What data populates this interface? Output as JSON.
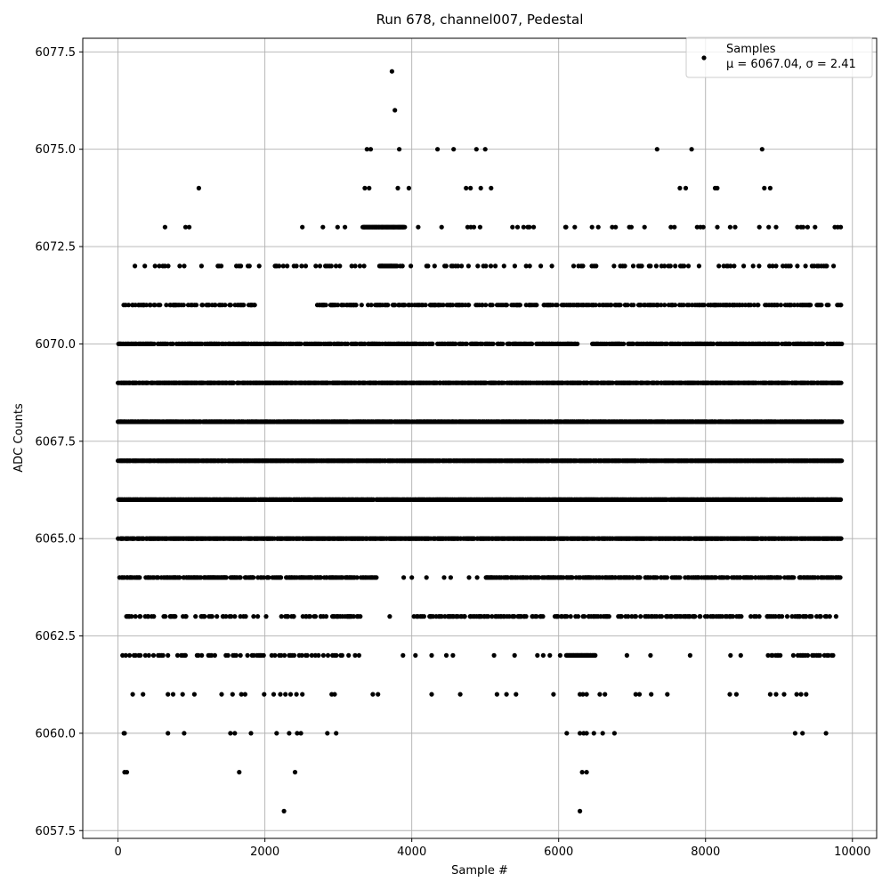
{
  "chart_data": {
    "type": "scatter",
    "title": "Run 678, channel007, Pedestal",
    "xlabel": "Sample #",
    "ylabel": "ADC Counts",
    "xlim": [
      -480,
      10330
    ],
    "ylim": [
      6057.3,
      6077.85
    ],
    "xticks": [
      0,
      2000,
      4000,
      6000,
      8000,
      10000
    ],
    "yticks": [
      6057.5,
      6060.0,
      6062.5,
      6065.0,
      6067.5,
      6070.0,
      6072.5,
      6075.0,
      6077.5
    ],
    "grid": true,
    "legend": {
      "placement": "top-right",
      "series_label": "Samples",
      "stats_text": "μ = 6067.04, σ = 2.41"
    },
    "colors": {
      "marker": "#000000",
      "grid": "#b0b0b0"
    },
    "series": [
      {
        "name": "Samples",
        "mean": 6067.04,
        "sigma": 2.41,
        "n_samples": 9850,
        "x_range": [
          0,
          9849
        ],
        "dense_levels": [
          6063,
          6064,
          6065,
          6066,
          6067,
          6068,
          6069,
          6070,
          6071
        ],
        "band_gaps": [
          {
            "level": 6063,
            "x_from": 3300,
            "x_to": 4000
          },
          {
            "level": 6064,
            "x_from": 3550,
            "x_to": 5000
          },
          {
            "level": 6071,
            "x_from": 1900,
            "x_to": 2700
          },
          {
            "level": 6070,
            "x_from": 6250,
            "x_to": 6450
          }
        ],
        "sparse_points": [
          [
            80,
            6060
          ],
          [
            90,
            6059
          ],
          [
            120,
            6059
          ],
          [
            230,
            6072
          ],
          [
            640,
            6073
          ],
          [
            920,
            6073
          ],
          [
            970,
            6073
          ],
          [
            1100,
            6074
          ],
          [
            1360,
            6072
          ],
          [
            1790,
            6072
          ],
          [
            2150,
            6072
          ],
          [
            2510,
            6073
          ],
          [
            2790,
            6073
          ],
          [
            2990,
            6073
          ],
          [
            3090,
            6073
          ],
          [
            3230,
            6072
          ],
          [
            3360,
            6074
          ],
          [
            3390,
            6075
          ],
          [
            3420,
            6074
          ],
          [
            3440,
            6075
          ],
          [
            3730,
            6077
          ],
          [
            3770,
            6076
          ],
          [
            3810,
            6074
          ],
          [
            3830,
            6075
          ],
          [
            3960,
            6074
          ],
          [
            4350,
            6075
          ],
          [
            4570,
            6075
          ],
          [
            4740,
            6074
          ],
          [
            4800,
            6074
          ],
          [
            4880,
            6075
          ],
          [
            4940,
            6074
          ],
          [
            5000,
            6075
          ],
          [
            5080,
            6074
          ],
          [
            6100,
            6073
          ],
          [
            6730,
            6073
          ],
          [
            6990,
            6073
          ],
          [
            7340,
            6075
          ],
          [
            7650,
            6074
          ],
          [
            7730,
            6074
          ],
          [
            7810,
            6075
          ],
          [
            8130,
            6074
          ],
          [
            8160,
            6074
          ],
          [
            8770,
            6075
          ],
          [
            8800,
            6074
          ],
          [
            8880,
            6074
          ],
          [
            8960,
            6073
          ],
          [
            9390,
            6073
          ],
          [
            9760,
            6073
          ],
          [
            9840,
            6073
          ],
          [
            3700,
            6063
          ],
          [
            4030,
            6063
          ],
          [
            4290,
            6063
          ],
          [
            4500,
            6063
          ],
          [
            4560,
            6063
          ],
          [
            4680,
            6063
          ],
          [
            3890,
            6064
          ],
          [
            4000,
            6064
          ],
          [
            4200,
            6064
          ],
          [
            4440,
            6064
          ],
          [
            4530,
            6064
          ],
          [
            4780,
            6064
          ],
          [
            4890,
            6064
          ],
          [
            3880,
            6062
          ],
          [
            4050,
            6062
          ],
          [
            4270,
            6062
          ],
          [
            4470,
            6062
          ],
          [
            4560,
            6062
          ],
          [
            5120,
            6062
          ],
          [
            5400,
            6062
          ],
          [
            5710,
            6062
          ],
          [
            5790,
            6062
          ],
          [
            5880,
            6062
          ],
          [
            6020,
            6062
          ],
          [
            7790,
            6062
          ],
          [
            8340,
            6062
          ],
          [
            8480,
            6062
          ],
          [
            200,
            6061
          ],
          [
            340,
            6061
          ],
          [
            680,
            6061
          ],
          [
            750,
            6061
          ],
          [
            880,
            6061
          ],
          [
            1040,
            6061
          ],
          [
            1410,
            6061
          ],
          [
            1560,
            6061
          ],
          [
            1680,
            6061
          ],
          [
            1730,
            6061
          ],
          [
            1990,
            6061
          ],
          [
            2120,
            6061
          ],
          [
            2210,
            6061
          ],
          [
            2280,
            6061
          ],
          [
            2350,
            6061
          ],
          [
            2430,
            6061
          ],
          [
            2510,
            6061
          ],
          [
            2910,
            6061
          ],
          [
            2950,
            6061
          ],
          [
            3470,
            6061
          ],
          [
            3540,
            6061
          ],
          [
            4270,
            6061
          ],
          [
            4660,
            6061
          ],
          [
            5160,
            6061
          ],
          [
            5290,
            6061
          ],
          [
            5420,
            6061
          ],
          [
            5930,
            6061
          ],
          [
            6290,
            6061
          ],
          [
            6330,
            6061
          ],
          [
            6380,
            6061
          ],
          [
            6560,
            6061
          ],
          [
            6630,
            6061
          ],
          [
            7050,
            6061
          ],
          [
            7100,
            6061
          ],
          [
            7260,
            6061
          ],
          [
            7480,
            6061
          ],
          [
            8330,
            6061
          ],
          [
            8420,
            6061
          ],
          [
            8880,
            6061
          ],
          [
            8960,
            6061
          ],
          [
            9070,
            6061
          ],
          [
            9240,
            6061
          ],
          [
            9300,
            6061
          ],
          [
            9370,
            6061
          ],
          [
            90,
            6060
          ],
          [
            680,
            6060
          ],
          [
            900,
            6060
          ],
          [
            1530,
            6060
          ],
          [
            1590,
            6060
          ],
          [
            1810,
            6060
          ],
          [
            2160,
            6060
          ],
          [
            2330,
            6060
          ],
          [
            2440,
            6060
          ],
          [
            2490,
            6060
          ],
          [
            2850,
            6060
          ],
          [
            2970,
            6060
          ],
          [
            6110,
            6060
          ],
          [
            6290,
            6060
          ],
          [
            6340,
            6060
          ],
          [
            6380,
            6060
          ],
          [
            6480,
            6060
          ],
          [
            6600,
            6060
          ],
          [
            6760,
            6060
          ],
          [
            9220,
            6060
          ],
          [
            9320,
            6060
          ],
          [
            9640,
            6060
          ],
          [
            1650,
            6059
          ],
          [
            2410,
            6059
          ],
          [
            6320,
            6059
          ],
          [
            6380,
            6059
          ],
          [
            2260,
            6058
          ],
          [
            6290,
            6058
          ]
        ]
      }
    ]
  }
}
